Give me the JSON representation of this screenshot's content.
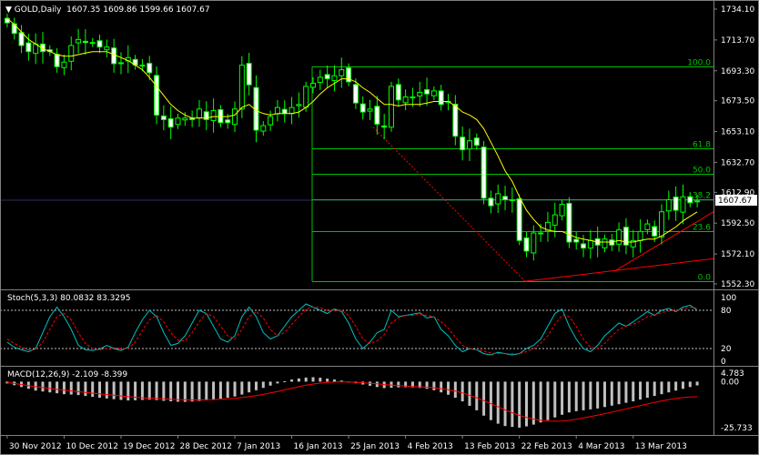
{
  "window": {
    "title_arrow": "▼",
    "symbol_title": "GOLD,Daily",
    "ohlc_readout": "1607.35 1609.86 1599.66 1607.67"
  },
  "colors": {
    "background": "#000000",
    "candle_up": "#000000",
    "candle_up_border": "#00ff00",
    "candle_down": "#ffffff",
    "candle_wick": "#00ff00",
    "moving_average": "#ffff00",
    "fibonacci": "#00c000",
    "trendline": "#ff0000",
    "stoch_main": "#00c0c0",
    "stoch_signal": "#ff0000",
    "macd_histogram": "#c0c0c0",
    "macd_signal": "#ff0000",
    "axis_text": "#ffffff",
    "current_price_box": "#ffffff"
  },
  "chart_data": [
    {
      "type": "candlestick",
      "name": "GOLD,Daily",
      "ylim": [
        1552.3,
        1734.1
      ],
      "yticks": [
        "1734.10",
        "1713.70",
        "1693.30",
        "1673.50",
        "1653.10",
        "1632.70",
        "1612.90",
        "1592.50",
        "1572.10",
        "1552.30"
      ],
      "current_price": "1607.67",
      "xticks": [
        "30 Nov 2012",
        "10 Dec 2012",
        "19 Dec 2012",
        "28 Dec 2012",
        "7 Jan 2013",
        "16 Jan 2013",
        "25 Jan 2013",
        "4 Feb 2013",
        "13 Feb 2013",
        "22 Feb 2013",
        "4 Mar 2013",
        "13 Mar 2013"
      ],
      "close": [
        1725,
        1718,
        1710,
        1706,
        1711,
        1706,
        1706,
        1696,
        1699,
        1710,
        1714,
        1712,
        1712,
        1709,
        1709,
        1698,
        1698,
        1702,
        1697,
        1697,
        1692,
        1664,
        1661,
        1656,
        1662,
        1662,
        1661,
        1668,
        1661,
        1667,
        1659,
        1659,
        1668,
        1697,
        1684,
        1654,
        1657,
        1663,
        1669,
        1665,
        1669,
        1671,
        1683,
        1685,
        1689,
        1688,
        1690,
        1694,
        1686,
        1672,
        1666,
        1668,
        1658,
        1656,
        1683,
        1674,
        1676,
        1676,
        1679,
        1678,
        1680,
        1671,
        1673,
        1650,
        1641,
        1647,
        1644,
        1609,
        1604,
        1612,
        1608,
        1608,
        1581,
        1574,
        1586,
        1586,
        1593,
        1598,
        1605,
        1580,
        1580,
        1576,
        1581,
        1578,
        1582,
        1578,
        1588,
        1578,
        1581,
        1587,
        1592,
        1584,
        1600,
        1608,
        1601,
        1610,
        1606,
        1607
      ],
      "fibonacci_levels": [
        {
          "label": "100.0",
          "price": 1696
        },
        {
          "label": "61.8",
          "price": 1642
        },
        {
          "label": "50.0",
          "price": 1625
        },
        {
          "label": "38.2",
          "price": 1608
        },
        {
          "label": "23.6",
          "price": 1587
        },
        {
          "label": "0.0",
          "price": 1554
        }
      ],
      "moving_average": [
        1728,
        1724,
        1719,
        1714,
        1711,
        1708,
        1706,
        1704,
        1703,
        1703,
        1704,
        1705,
        1706,
        1706,
        1706,
        1704,
        1702,
        1700,
        1697,
        1694,
        1689,
        1683,
        1677,
        1671,
        1667,
        1664,
        1662,
        1662,
        1662,
        1663,
        1663,
        1663,
        1664,
        1669,
        1671,
        1667,
        1665,
        1664,
        1665,
        1665,
        1665,
        1666,
        1669,
        1673,
        1678,
        1682,
        1685,
        1688,
        1688,
        1686,
        1682,
        1679,
        1675,
        1671,
        1671,
        1670,
        1671,
        1671,
        1671,
        1672,
        1673,
        1673,
        1673,
        1670,
        1666,
        1664,
        1661,
        1655,
        1646,
        1637,
        1627,
        1620,
        1610,
        1601,
        1595,
        1590,
        1588,
        1587,
        1587,
        1585,
        1583,
        1582,
        1581,
        1580,
        1580,
        1580,
        1581,
        1580,
        1580,
        1581,
        1582,
        1582,
        1584,
        1587,
        1590,
        1594,
        1597,
        1600
      ]
    },
    {
      "type": "line",
      "name": "Stoch(5,3,3) 80.0832 83.3295",
      "ylim": [
        0,
        100
      ],
      "yticks": [
        "100",
        "80",
        "20",
        "0"
      ],
      "levels": [
        80,
        20
      ],
      "series": [
        {
          "name": "main",
          "values": [
            30,
            22,
            18,
            15,
            20,
            45,
            70,
            85,
            70,
            50,
            25,
            18,
            17,
            19,
            25,
            20,
            17,
            22,
            45,
            65,
            80,
            70,
            45,
            25,
            28,
            40,
            60,
            80,
            75,
            55,
            35,
            30,
            40,
            70,
            85,
            70,
            45,
            35,
            40,
            55,
            70,
            80,
            90,
            85,
            80,
            75,
            82,
            78,
            60,
            35,
            20,
            30,
            45,
            50,
            80,
            70,
            72,
            74,
            76,
            68,
            70,
            50,
            40,
            25,
            15,
            20,
            18,
            12,
            10,
            14,
            12,
            10,
            12,
            20,
            25,
            35,
            55,
            75,
            82,
            55,
            35,
            20,
            15,
            25,
            40,
            50,
            60,
            55,
            62,
            70,
            78,
            72,
            80,
            83,
            78,
            85,
            88,
            80
          ]
        },
        {
          "name": "signal",
          "values": [
            35,
            28,
            22,
            18,
            18,
            30,
            50,
            70,
            75,
            65,
            45,
            28,
            20,
            18,
            20,
            21,
            20,
            20,
            30,
            48,
            65,
            72,
            62,
            45,
            33,
            32,
            45,
            62,
            75,
            70,
            55,
            40,
            35,
            50,
            70,
            78,
            68,
            50,
            40,
            45,
            58,
            70,
            82,
            85,
            84,
            80,
            79,
            80,
            72,
            55,
            35,
            28,
            32,
            42,
            60,
            68,
            72,
            72,
            74,
            72,
            70,
            62,
            52,
            38,
            25,
            20,
            18,
            16,
            13,
            12,
            12,
            12,
            12,
            15,
            20,
            28,
            40,
            58,
            72,
            70,
            55,
            35,
            22,
            20,
            28,
            40,
            50,
            55,
            58,
            63,
            70,
            73,
            76,
            79,
            80,
            82,
            85,
            83
          ]
        }
      ]
    },
    {
      "type": "bar",
      "name": "MACD(12,26,9) -2.109 -8.399",
      "ylim": [
        -25.733,
        4.783
      ],
      "yticks": [
        "4.783",
        "0.00",
        "-25.733"
      ],
      "series": [
        {
          "name": "macd",
          "values": [
            -1,
            -2,
            -3,
            -4,
            -5,
            -5.5,
            -6,
            -6.5,
            -7,
            -7.2,
            -7.5,
            -8,
            -8.5,
            -9,
            -9.4,
            -9.8,
            -10.2,
            -10.5,
            -10.4,
            -10.2,
            -10,
            -10.3,
            -10.7,
            -11,
            -11.2,
            -11.3,
            -11.1,
            -10.8,
            -10.4,
            -9.9,
            -9.5,
            -9,
            -8.3,
            -7.2,
            -6,
            -4.8,
            -3.5,
            -2.2,
            -1,
            0.2,
            1.2,
            1.8,
            2.3,
            2.5,
            2.2,
            1.7,
            1.2,
            0.6,
            -0.2,
            -0.9,
            -1.6,
            -2.3,
            -3,
            -3.6,
            -3.4,
            -3.2,
            -3.1,
            -3.2,
            -3.5,
            -4,
            -4.8,
            -6,
            -7.3,
            -9,
            -11,
            -13.5,
            -16,
            -19,
            -21.5,
            -23.5,
            -24.8,
            -25.3,
            -25.7,
            -25,
            -24,
            -22.8,
            -21.5,
            -20,
            -18.5,
            -17.2,
            -16.5,
            -16,
            -15.5,
            -15,
            -14.2,
            -13.4,
            -12.6,
            -11.8,
            -11,
            -10,
            -9,
            -8,
            -7,
            -6,
            -5,
            -4,
            -3,
            -2.1
          ]
        },
        {
          "name": "signal",
          "values": [
            -0.5,
            -1,
            -1.6,
            -2.2,
            -2.8,
            -3.3,
            -3.8,
            -4.3,
            -4.8,
            -5.2,
            -5.6,
            -6,
            -6.4,
            -6.8,
            -7.2,
            -7.6,
            -8,
            -8.4,
            -8.7,
            -9,
            -9.2,
            -9.4,
            -9.6,
            -9.8,
            -10,
            -10.1,
            -10.2,
            -10.2,
            -10.1,
            -10,
            -9.8,
            -9.6,
            -9.3,
            -8.9,
            -8.4,
            -7.8,
            -7.1,
            -6.3,
            -5.5,
            -4.6,
            -3.7,
            -2.8,
            -2,
            -1.3,
            -0.8,
            -0.4,
            -0.2,
            -0.1,
            -0.2,
            -0.4,
            -0.6,
            -0.9,
            -1.2,
            -1.6,
            -1.9,
            -2.2,
            -2.5,
            -2.7,
            -2.9,
            -3.1,
            -3.4,
            -3.9,
            -4.5,
            -5.3,
            -6.3,
            -7.6,
            -9,
            -10.6,
            -12.3,
            -14,
            -15.8,
            -17.4,
            -18.8,
            -20,
            -20.9,
            -21.6,
            -22,
            -22.1,
            -22,
            -21.6,
            -21,
            -20.3,
            -19.5,
            -18.7,
            -17.9,
            -17,
            -16.1,
            -15.2,
            -14.3,
            -13.4,
            -12.5,
            -11.6,
            -10.8,
            -10,
            -9.4,
            -8.9,
            -8.6,
            -8.4
          ]
        }
      ]
    }
  ]
}
